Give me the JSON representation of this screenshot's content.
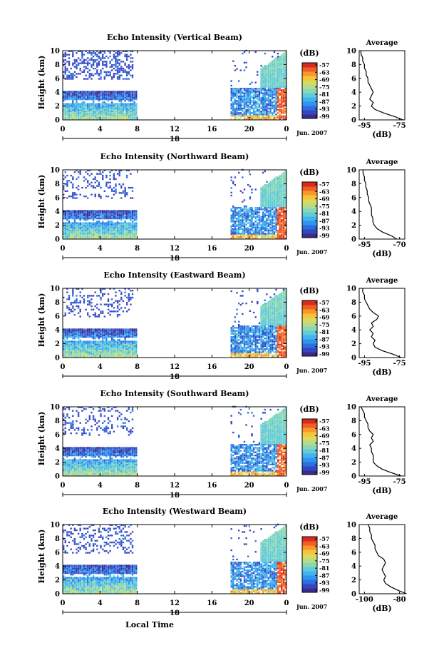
{
  "figure": {
    "xlabel": "Local Time",
    "date_label": "Jun. 2007",
    "date_tick": "18",
    "colorbar_unit": "(dB)"
  },
  "colorbar": {
    "ticks": [
      "-57",
      "-63",
      "-69",
      "-75",
      "-81",
      "-87",
      "-93",
      "-99"
    ],
    "colors": [
      "#3b2b8f",
      "#3546c2",
      "#2c6fe0",
      "#2f95ef",
      "#41b4ee",
      "#62cbd9",
      "#8ad8b2",
      "#b6dc8a",
      "#dcd95e",
      "#f6c33a",
      "#f9972a",
      "#ef5f24",
      "#d92a1f"
    ]
  },
  "chart_data": [
    {
      "type": "heatmap",
      "title": "Echo Intensity (Vertical Beam)",
      "ylabel": "Height (km)",
      "x_ticks": [
        "0",
        "4",
        "8",
        "12",
        "16",
        "20",
        "0"
      ],
      "y_ticks": [
        "0",
        "2",
        "4",
        "6",
        "8",
        "10"
      ],
      "xlim": [
        0,
        24
      ],
      "ylim": [
        0,
        10
      ],
      "color_scale": "dB",
      "clim": [
        -99,
        -57
      ]
    },
    {
      "type": "line",
      "title": "Average",
      "xlabel": "(dB)",
      "x_ticks": [
        "-95",
        "-75"
      ],
      "y_ticks": [
        "0",
        "2",
        "4",
        "6",
        "8",
        "10"
      ],
      "ylim": [
        0,
        10
      ],
      "height": [
        0,
        0.5,
        1,
        1.5,
        2,
        2.5,
        3,
        3.5,
        4,
        4.5,
        5,
        5.5,
        6,
        6.5,
        7,
        7.5,
        8,
        8.5,
        9,
        9.5,
        10
      ],
      "values": [
        -73,
        -78,
        -84,
        -89,
        -91,
        -90,
        -92,
        -91,
        -90,
        -91,
        -92,
        -93,
        -93,
        -94,
        -94,
        -95,
        -95,
        -96,
        -96,
        -97,
        -97
      ]
    },
    {
      "type": "heatmap",
      "title": "Echo Intensity (Northward Beam)",
      "ylabel": "Height (km)",
      "x_ticks": [
        "0",
        "4",
        "8",
        "12",
        "16",
        "20",
        "0"
      ],
      "y_ticks": [
        "0",
        "2",
        "4",
        "6",
        "8",
        "10"
      ],
      "xlim": [
        0,
        24
      ],
      "ylim": [
        0,
        10
      ],
      "color_scale": "dB",
      "clim": [
        -99,
        -57
      ]
    },
    {
      "type": "line",
      "title": "Average",
      "xlabel": "(dB)",
      "x_ticks": [
        "-95",
        "-70"
      ],
      "y_ticks": [
        "0",
        "2",
        "4",
        "6",
        "8",
        "10"
      ],
      "ylim": [
        0,
        10
      ],
      "height": [
        0,
        0.5,
        1,
        1.5,
        2,
        2.5,
        3,
        3.5,
        4,
        4.5,
        5,
        5.5,
        6,
        6.5,
        7,
        7.5,
        8,
        8.5,
        9,
        9.5,
        10
      ],
      "values": [
        -72,
        -76,
        -82,
        -86,
        -88,
        -89,
        -89,
        -90,
        -90,
        -90,
        -91,
        -92,
        -92,
        -93,
        -93,
        -94,
        -94,
        -95,
        -95,
        -96,
        -96
      ]
    },
    {
      "type": "heatmap",
      "title": "Echo Intensity (Eastward Beam)",
      "ylabel": "Height (km)",
      "x_ticks": [
        "0",
        "4",
        "8",
        "12",
        "16",
        "20",
        "0"
      ],
      "y_ticks": [
        "0",
        "2",
        "4",
        "6",
        "8",
        "10"
      ],
      "xlim": [
        0,
        24
      ],
      "ylim": [
        0,
        10
      ],
      "color_scale": "dB",
      "clim": [
        -99,
        -57
      ]
    },
    {
      "type": "line",
      "title": "Average",
      "xlabel": "(dB)",
      "x_ticks": [
        "-95",
        "-75"
      ],
      "y_ticks": [
        "0",
        "2",
        "4",
        "6",
        "8",
        "10"
      ],
      "ylim": [
        0,
        10
      ],
      "height": [
        0,
        0.5,
        1,
        1.5,
        2,
        2.5,
        3,
        3.5,
        4,
        4.5,
        5,
        5.5,
        6,
        6.5,
        7,
        7.5,
        8,
        8.5,
        9,
        9.5,
        10
      ],
      "values": [
        -74,
        -79,
        -85,
        -89,
        -90,
        -89,
        -91,
        -90,
        -92,
        -90,
        -91,
        -88,
        -87,
        -90,
        -92,
        -93,
        -94,
        -95,
        -95,
        -96,
        -96
      ]
    },
    {
      "type": "heatmap",
      "title": "Echo Intensity (Southward Beam)",
      "ylabel": "Height (km)",
      "x_ticks": [
        "0",
        "4",
        "8",
        "12",
        "16",
        "20",
        "0"
      ],
      "y_ticks": [
        "0",
        "2",
        "4",
        "6",
        "8",
        "10"
      ],
      "xlim": [
        0,
        24
      ],
      "ylim": [
        0,
        10
      ],
      "color_scale": "dB",
      "clim": [
        -99,
        -57
      ]
    },
    {
      "type": "line",
      "title": "Average",
      "xlabel": "(dB)",
      "x_ticks": [
        "-95",
        "-75"
      ],
      "y_ticks": [
        "0",
        "2",
        "4",
        "6",
        "8",
        "10"
      ],
      "ylim": [
        0,
        10
      ],
      "height": [
        0,
        0.5,
        1,
        1.5,
        2,
        2.5,
        3,
        3.5,
        4,
        4.5,
        5,
        5.5,
        6,
        6.5,
        7,
        7.5,
        8,
        8.5,
        9,
        9.5,
        10
      ],
      "values": [
        -74,
        -80,
        -85,
        -88,
        -90,
        -90,
        -90,
        -91,
        -91,
        -92,
        -90,
        -91,
        -90,
        -92,
        -93,
        -93,
        -94,
        -95,
        -95,
        -96,
        -97
      ]
    },
    {
      "type": "heatmap",
      "title": "Echo Intensity (Westward Beam)",
      "ylabel": "Height (km)",
      "x_ticks": [
        "0",
        "4",
        "8",
        "12",
        "16",
        "20",
        "0"
      ],
      "y_ticks": [
        "0",
        "2",
        "4",
        "6",
        "8",
        "10"
      ],
      "xlim": [
        0,
        24
      ],
      "ylim": [
        0,
        10
      ],
      "color_scale": "dB",
      "clim": [
        -99,
        -57
      ]
    },
    {
      "type": "line",
      "title": "Average",
      "xlabel": "(dB)",
      "x_ticks": [
        "-100",
        "-80"
      ],
      "y_ticks": [
        "0",
        "2",
        "4",
        "6",
        "8",
        "10"
      ],
      "ylim": [
        0,
        10
      ],
      "height": [
        0,
        0.5,
        1,
        1.5,
        2,
        2.5,
        3,
        3.5,
        4,
        4.5,
        5,
        5.5,
        6,
        6.5,
        7,
        7.5,
        8,
        8.5,
        9,
        9.5,
        10
      ],
      "values": [
        -76,
        -81,
        -85,
        -88,
        -89,
        -88,
        -89,
        -90,
        -89,
        -88,
        -89,
        -92,
        -93,
        -94,
        -94,
        -95,
        -96,
        -96,
        -97,
        -97,
        -98
      ]
    }
  ]
}
